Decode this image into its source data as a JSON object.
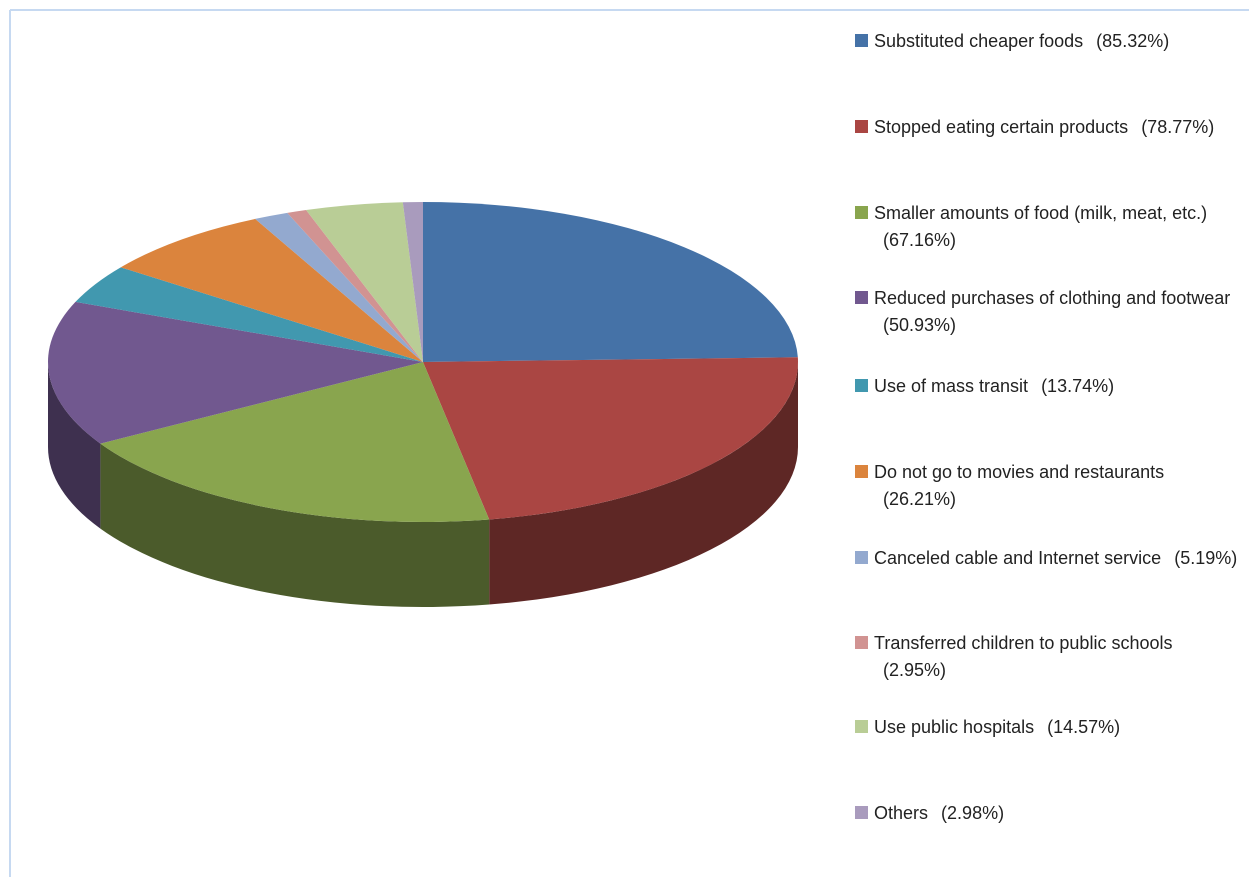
{
  "chart_data": {
    "type": "pie3d",
    "categories": [
      "Substituted cheaper foods",
      "Stopped eating certain products",
      "Smaller amounts of food (milk, meat, etc.)",
      "Reduced purchases of clothing and footwear",
      "Use of mass transit",
      "Do not go to movies and restaurants",
      "Canceled cable and Internet service",
      "Transferred children to public schools",
      "Use public hospitals",
      "Others"
    ],
    "values": [
      85.32,
      78.77,
      67.16,
      50.93,
      13.74,
      26.21,
      5.19,
      2.95,
      14.57,
      2.98
    ],
    "value_labels": [
      "(85.32%)",
      "(78.77%)",
      "(67.16%)",
      "(50.93%)",
      "(13.74%)",
      "(26.21%)",
      "(5.19%)",
      "(2.95%)",
      "(14.57%)",
      "(2.98%)"
    ],
    "colors": [
      "#4572a7",
      "#aa4643",
      "#89a54e",
      "#71588f",
      "#4198af",
      "#db843d",
      "#93a9cf",
      "#d19392",
      "#b9cd96",
      "#a99bbd"
    ],
    "legend": "right"
  }
}
